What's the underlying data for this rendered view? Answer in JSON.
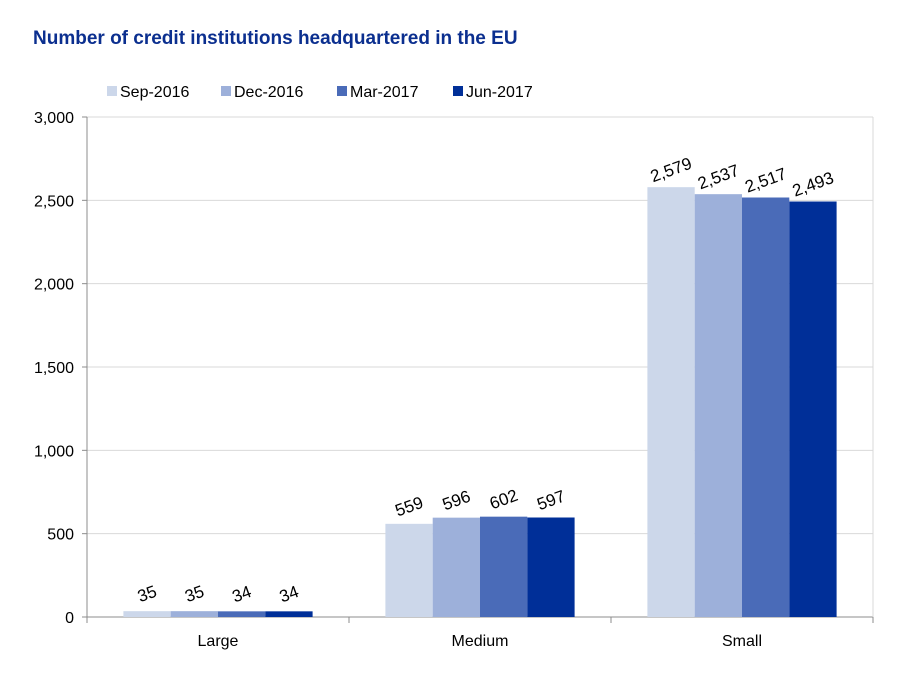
{
  "chart_data": {
    "type": "bar",
    "title": "Number of credit institutions headquartered in the EU",
    "categories": [
      "Large",
      "Medium",
      "Small"
    ],
    "series": [
      {
        "name": "Sep-2016",
        "values": [
          35,
          559,
          2579
        ],
        "color": "#ccd7ea"
      },
      {
        "name": "Dec-2016",
        "values": [
          35,
          596,
          2537
        ],
        "color": "#9db0da"
      },
      {
        "name": "Mar-2017",
        "values": [
          34,
          602,
          2517
        ],
        "color": "#4a6bb8"
      },
      {
        "name": "Jun-2017",
        "values": [
          34,
          597,
          2493
        ],
        "color": "#002f98"
      }
    ],
    "data_labels": [
      [
        "35",
        "559",
        "2,579"
      ],
      [
        "35",
        "596",
        "2,537"
      ],
      [
        "34",
        "602",
        "2,517"
      ],
      [
        "34",
        "597",
        "2,493"
      ]
    ],
    "ylim": [
      0,
      3000
    ],
    "yticks": [
      0,
      500,
      1000,
      1500,
      2000,
      2500,
      3000
    ],
    "ytick_labels": [
      "0",
      "500",
      "1,000",
      "1,500",
      "2,000",
      "2,500",
      "3,000"
    ],
    "grid": true,
    "legend": "top",
    "xlabel": "",
    "ylabel": ""
  }
}
